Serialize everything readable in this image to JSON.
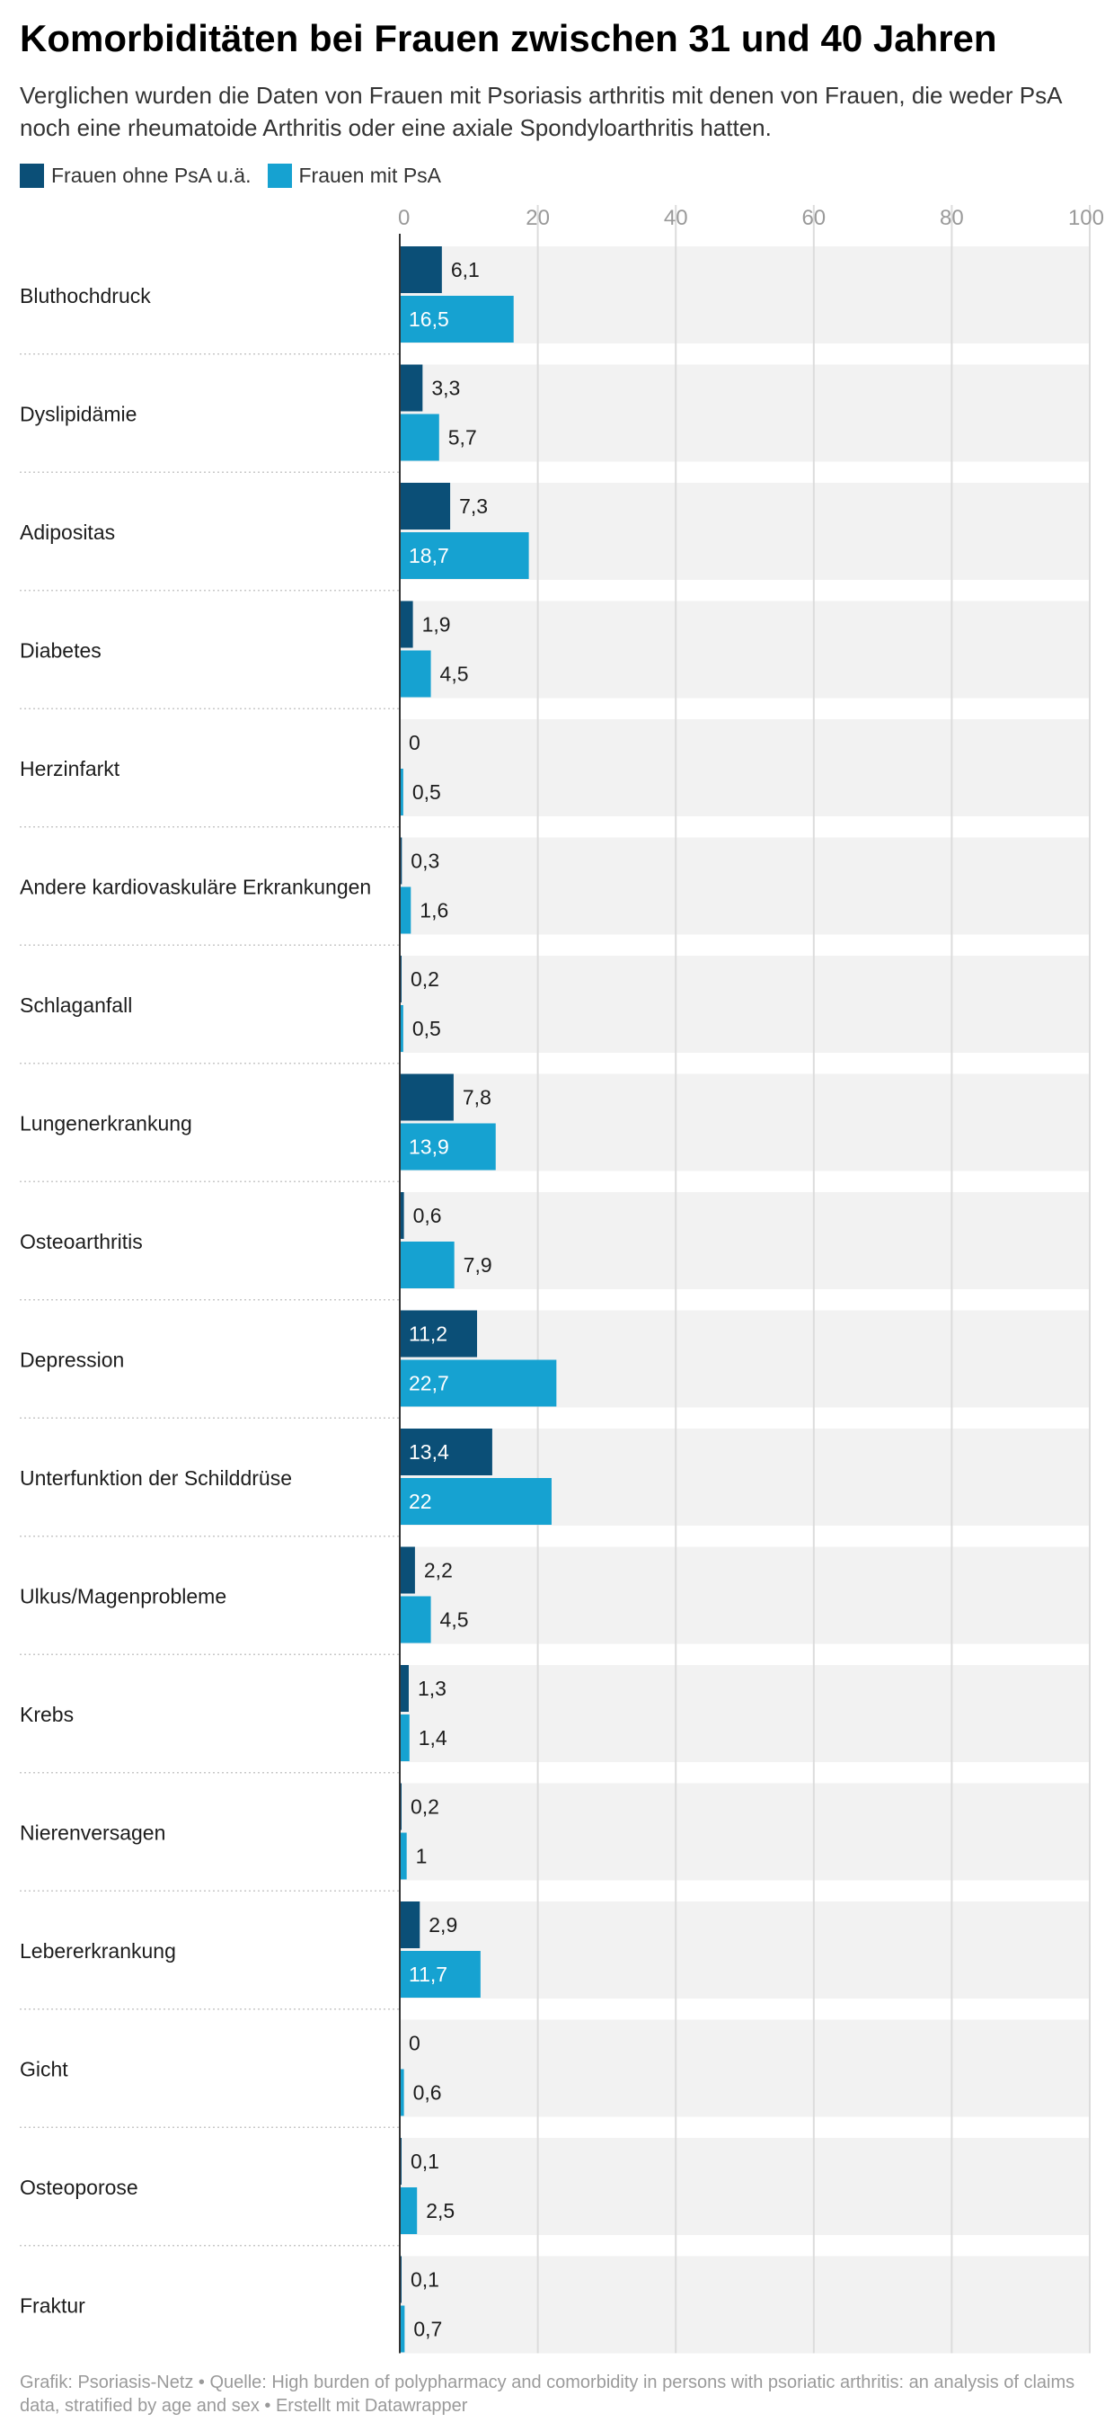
{
  "header": {
    "title": "Komorbiditäten bei Frauen zwischen 31 und 40 Jahren",
    "subtitle": "Verglichen wurden die Daten von Frauen mit Psoriasis arthritis mit denen von Frauen, die weder PsA noch eine rheumatoide Arthritis oder eine axiale Spondyloarthritis hatten."
  },
  "legend": [
    {
      "label": "Frauen ohne PsA u.ä.",
      "color": "#0b4f77"
    },
    {
      "label": "Frauen mit PsA",
      "color": "#16a2d1"
    }
  ],
  "footer": {
    "text": "Grafik: Psoriasis-Netz • Quelle: High burden of polypharmacy and comorbidity in persons with psoriatic arthritis: an analysis of claims data, stratified by age and sex • Erstellt mit Datawrapper"
  },
  "chart_data": {
    "type": "bar",
    "orientation": "horizontal",
    "xlim": [
      0,
      100
    ],
    "x_ticks": [
      "0",
      "20",
      "40",
      "60",
      "80",
      "100"
    ],
    "grid": true,
    "legend_position": "top-left",
    "categories": [
      "Bluthochdruck",
      "Dyslipidämie",
      "Adipositas",
      "Diabetes",
      "Herzinfarkt",
      "Andere kardiovaskuläre Erkrankungen",
      "Schlaganfall",
      "Lungenerkrankung",
      "Osteoarthritis",
      "Depression",
      "Unterfunktion der Schilddrüse",
      "Ulkus/Magenprobleme",
      "Krebs",
      "Nierenversagen",
      "Lebererkrankung",
      "Gicht",
      "Osteoporose",
      "Fraktur"
    ],
    "series": [
      {
        "name": "Frauen ohne PsA u.ä.",
        "color": "#0b4f77",
        "values": [
          6.1,
          3.3,
          7.3,
          1.9,
          0,
          0.3,
          0.2,
          7.8,
          0.6,
          11.2,
          13.4,
          2.2,
          1.3,
          0.2,
          2.9,
          0,
          0.1,
          0.1
        ],
        "labels": [
          "6,1",
          "3,3",
          "7,3",
          "1,9",
          "0",
          "0,3",
          "0,2",
          "7,8",
          "0,6",
          "11,2",
          "13,4",
          "2,2",
          "1,3",
          "0,2",
          "2,9",
          "0",
          "0,1",
          "0,1"
        ]
      },
      {
        "name": "Frauen mit PsA",
        "color": "#16a2d1",
        "values": [
          16.5,
          5.7,
          18.7,
          4.5,
          0.5,
          1.6,
          0.5,
          13.9,
          7.9,
          22.7,
          22,
          4.5,
          1.4,
          1,
          11.7,
          0.6,
          2.5,
          0.7
        ],
        "labels": [
          "16,5",
          "5,7",
          "18,7",
          "4,5",
          "0,5",
          "1,6",
          "0,5",
          "13,9",
          "7,9",
          "22,7",
          "22",
          "4,5",
          "1,4",
          "1",
          "11,7",
          "0,6",
          "2,5",
          "0,7"
        ]
      }
    ]
  }
}
